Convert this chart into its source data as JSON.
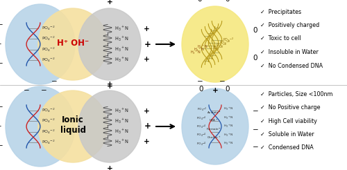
{
  "top_row": {
    "dna_circle_color": "#b8d4e8",
    "acid_circle_color": "#f5e0a0",
    "poly_circle_color": "#c8c8c8",
    "acid_label": "H⁺ OH⁻",
    "acid_label_color": "#cc0000",
    "acid_label_size": 8.5,
    "result_circle_color": "#f5e880",
    "checklist": [
      "✓  Precipitates",
      "✓  Positively charged",
      "✓  Toxic to cell",
      "✓  Insoluble in Water",
      "✓  No Condensed DNA"
    ]
  },
  "bottom_row": {
    "dna_circle_color": "#b8d4e8",
    "il_circle_color": "#f5e0a0",
    "poly_circle_color": "#c8c8c8",
    "il_label": "Ionic\nliquid",
    "il_label_color": "#000000",
    "il_label_size": 8.5,
    "result_circle_color": "#b8d4e8",
    "checklist": [
      "✓  Particles, Size <100nm",
      "✓  No Positive charge",
      "✓  High Cell viability",
      "✓  Soluble in Water",
      "✓  Condensed DNA"
    ]
  },
  "arrow_color": "#000000",
  "text_color": "#000000",
  "bg_color": "#ffffff",
  "font_size_checklist": 5.8,
  "font_size_charges": 7.5
}
